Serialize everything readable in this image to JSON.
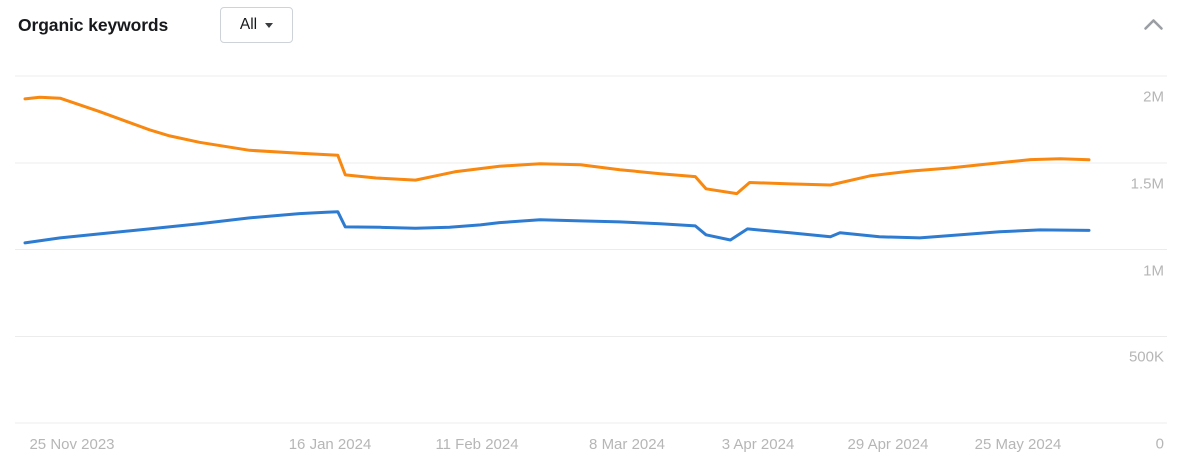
{
  "header": {
    "title": "Organic keywords",
    "filter": {
      "selected": "All"
    }
  },
  "colors": {
    "series_orange": "#f8880f",
    "series_blue": "#2e7cd1",
    "gridline": "#ececec",
    "axis_text": "#b6b6b6",
    "title_text": "#17191c",
    "collapse_icon": "#9b9fa3"
  },
  "chart_data": {
    "type": "line",
    "title": "Organic keywords",
    "unit": "millions",
    "grid": "horizontal",
    "legend": "none",
    "y_axis": {
      "side": "right",
      "range_millions": [
        0,
        2
      ],
      "ticks": [
        {
          "label": "2M",
          "value": 2.0
        },
        {
          "label": "1.5M",
          "value": 1.5
        },
        {
          "label": "1M",
          "value": 1.0
        },
        {
          "label": "500K",
          "value": 0.5
        },
        {
          "label": "0",
          "value": 0.0
        }
      ]
    },
    "x_axis": {
      "tick_labels": [
        "25 Nov 2023",
        "16 Jan 2024",
        "11 Feb 2024",
        "8 Mar 2024",
        "3 Apr 2024",
        "29 Apr 2024",
        "25 May 2024"
      ]
    },
    "series": [
      {
        "name": "orange",
        "color_key": "series_orange",
        "points": [
          [
            0.0,
            1.868
          ],
          [
            0.014,
            1.878
          ],
          [
            0.033,
            1.872
          ],
          [
            0.07,
            1.795
          ],
          [
            0.117,
            1.69
          ],
          [
            0.136,
            1.655
          ],
          [
            0.164,
            1.618
          ],
          [
            0.211,
            1.572
          ],
          [
            0.258,
            1.555
          ],
          [
            0.294,
            1.543
          ],
          [
            0.301,
            1.43
          ],
          [
            0.33,
            1.412
          ],
          [
            0.367,
            1.4
          ],
          [
            0.404,
            1.448
          ],
          [
            0.446,
            1.48
          ],
          [
            0.484,
            1.494
          ],
          [
            0.522,
            1.488
          ],
          [
            0.559,
            1.46
          ],
          [
            0.597,
            1.437
          ],
          [
            0.63,
            1.42
          ],
          [
            0.64,
            1.35
          ],
          [
            0.669,
            1.322
          ],
          [
            0.681,
            1.386
          ],
          [
            0.719,
            1.378
          ],
          [
            0.757,
            1.372
          ],
          [
            0.794,
            1.424
          ],
          [
            0.832,
            1.452
          ],
          [
            0.869,
            1.47
          ],
          [
            0.907,
            1.494
          ],
          [
            0.945,
            1.518
          ],
          [
            0.973,
            1.523
          ],
          [
            1.0,
            1.517
          ]
        ]
      },
      {
        "name": "blue",
        "color_key": "series_blue",
        "points": [
          [
            0.0,
            1.038
          ],
          [
            0.033,
            1.067
          ],
          [
            0.07,
            1.09
          ],
          [
            0.117,
            1.119
          ],
          [
            0.164,
            1.148
          ],
          [
            0.211,
            1.182
          ],
          [
            0.258,
            1.207
          ],
          [
            0.283,
            1.215
          ],
          [
            0.294,
            1.218
          ],
          [
            0.301,
            1.13
          ],
          [
            0.334,
            1.128
          ],
          [
            0.367,
            1.122
          ],
          [
            0.399,
            1.128
          ],
          [
            0.428,
            1.142
          ],
          [
            0.446,
            1.155
          ],
          [
            0.484,
            1.171
          ],
          [
            0.522,
            1.165
          ],
          [
            0.559,
            1.159
          ],
          [
            0.597,
            1.148
          ],
          [
            0.63,
            1.136
          ],
          [
            0.64,
            1.085
          ],
          [
            0.663,
            1.055
          ],
          [
            0.679,
            1.119
          ],
          [
            0.719,
            1.096
          ],
          [
            0.757,
            1.073
          ],
          [
            0.766,
            1.096
          ],
          [
            0.803,
            1.073
          ],
          [
            0.841,
            1.067
          ],
          [
            0.878,
            1.084
          ],
          [
            0.916,
            1.102
          ],
          [
            0.954,
            1.113
          ],
          [
            1.0,
            1.11
          ]
        ]
      }
    ]
  }
}
